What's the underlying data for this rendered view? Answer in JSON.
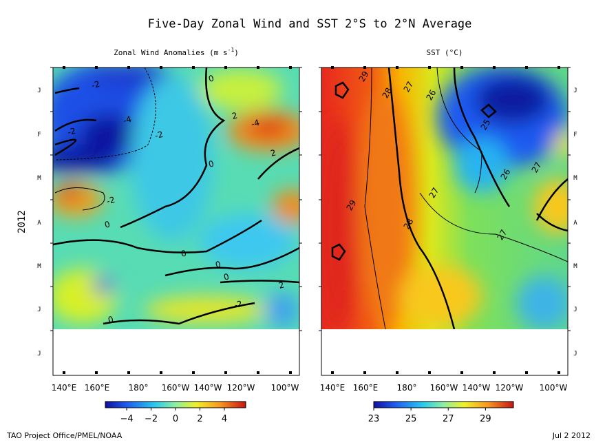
{
  "title": "Five-Day Zonal Wind and SST  2°S to 2°N Average",
  "ylabel": "2012",
  "months": [
    "J",
    "F",
    "M",
    "A",
    "M",
    "J",
    "J"
  ],
  "longitudes": [
    "140°E",
    "160°E",
    "180°",
    "160°W",
    "140°W",
    "120°W",
    "100°W"
  ],
  "panels": [
    {
      "title": "Zonal Wind Anomalies (m s",
      "title_sup": "-1",
      "title_end": ")",
      "colorbar": {
        "clim": [
          -5.75,
          5.75
        ],
        "ticks": [
          {
            "value": -4,
            "label": "−4"
          },
          {
            "value": -2,
            "label": "−2"
          },
          0,
          2,
          4
        ]
      },
      "contour_labels": [
        "-2",
        "-2",
        "-4",
        "-2",
        "2",
        "-4",
        "0",
        "0",
        "2",
        "-2",
        "0",
        "0",
        "0",
        "0",
        "2",
        "0",
        "-2"
      ]
    },
    {
      "title": "SST (°C)",
      "colorbar": {
        "clim": [
          23,
          30.5
        ],
        "ticks": [
          23,
          25,
          27,
          29
        ]
      },
      "contour_labels": [
        "29",
        "28",
        "27",
        "26",
        "25",
        "26",
        "27",
        "27",
        "29",
        "28",
        "27"
      ]
    }
  ],
  "footer": "TAO Project Office/PMEL/NOAA",
  "date": "Jul  2 2012"
}
